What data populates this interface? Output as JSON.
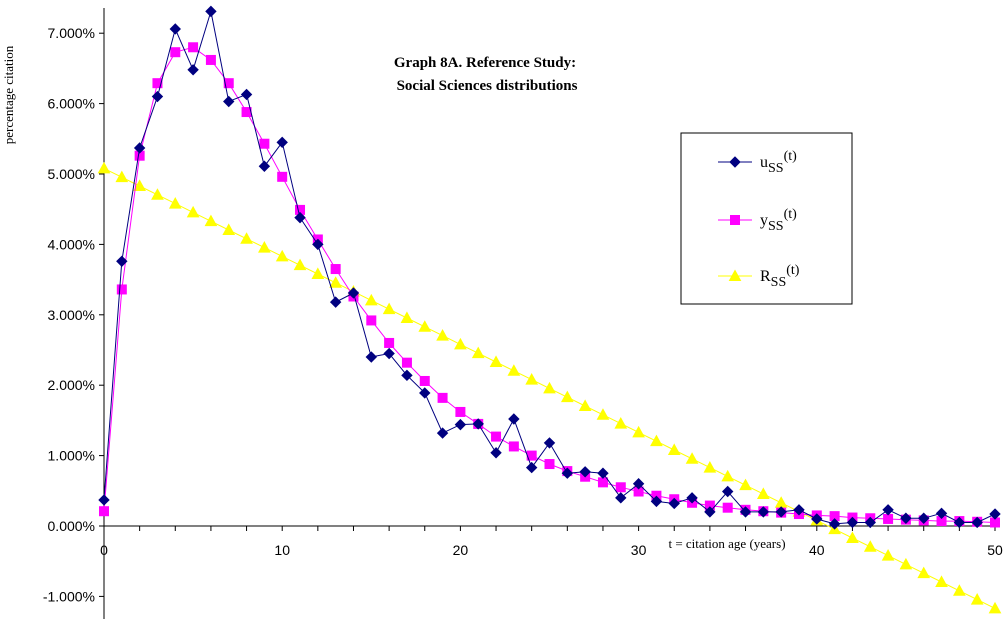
{
  "chart_data": {
    "type": "line",
    "title": "Graph 8A.  Reference Study:",
    "subtitle": "Social Sciences distributions",
    "xlabel": "t = citation age (years)",
    "ylabel": "percentage citation",
    "xlim": [
      0,
      50
    ],
    "ylim": [
      -1.0,
      7.5
    ],
    "x_ticks": [
      0,
      10,
      20,
      30,
      40,
      50
    ],
    "y_ticks": [
      -1.0,
      0.0,
      1.0,
      2.0,
      3.0,
      4.0,
      5.0,
      6.0,
      7.0
    ],
    "y_tick_labels": [
      "-1.000%",
      "0.000%",
      "1.000%",
      "2.000%",
      "3.000%",
      "4.000%",
      "5.000%",
      "6.000%",
      "7.000%"
    ],
    "grid": false,
    "legend_position": "right",
    "series": [
      {
        "name": "u",
        "name_sub": "SS",
        "name_sup": "(t)",
        "color": "#000080",
        "marker": "diamond",
        "x": [
          0,
          1,
          2,
          3,
          4,
          5,
          6,
          7,
          8,
          9,
          10,
          11,
          12,
          13,
          14,
          15,
          16,
          17,
          18,
          19,
          20,
          21,
          22,
          23,
          24,
          25,
          26,
          27,
          28,
          29,
          30,
          31,
          32,
          33,
          34,
          35,
          36,
          37,
          38,
          39,
          40,
          41,
          42,
          43,
          44,
          45,
          46,
          47,
          48,
          49,
          50
        ],
        "y": [
          0.37,
          3.76,
          5.37,
          6.1,
          7.06,
          6.48,
          7.31,
          6.03,
          6.13,
          5.11,
          5.45,
          4.38,
          4.0,
          3.18,
          3.31,
          2.4,
          2.45,
          2.14,
          1.89,
          1.32,
          1.44,
          1.45,
          1.04,
          1.52,
          0.83,
          1.18,
          0.75,
          0.77,
          0.75,
          0.4,
          0.6,
          0.35,
          0.32,
          0.4,
          0.2,
          0.49,
          0.2,
          0.2,
          0.2,
          0.23,
          0.1,
          0.03,
          0.05,
          0.05,
          0.23,
          0.11,
          0.11,
          0.18,
          0.05,
          0.05,
          0.17
        ]
      },
      {
        "name": "y",
        "name_sub": "SS",
        "name_sup": "(t)",
        "color": "#ff00ff",
        "marker": "square",
        "x": [
          0,
          1,
          2,
          3,
          4,
          5,
          6,
          7,
          8,
          9,
          10,
          11,
          12,
          13,
          14,
          15,
          16,
          17,
          18,
          19,
          20,
          21,
          22,
          23,
          24,
          25,
          26,
          27,
          28,
          29,
          30,
          31,
          32,
          33,
          34,
          35,
          36,
          37,
          38,
          39,
          40,
          41,
          42,
          43,
          44,
          45,
          46,
          47,
          48,
          49,
          50
        ],
        "y": [
          0.21,
          3.36,
          5.26,
          6.29,
          6.73,
          6.8,
          6.62,
          6.29,
          5.88,
          5.43,
          4.96,
          4.49,
          4.07,
          3.65,
          3.26,
          2.92,
          2.6,
          2.32,
          2.06,
          1.82,
          1.62,
          1.45,
          1.27,
          1.13,
          1.0,
          0.88,
          0.78,
          0.7,
          0.62,
          0.55,
          0.49,
          0.43,
          0.38,
          0.33,
          0.29,
          0.26,
          0.23,
          0.21,
          0.19,
          0.17,
          0.15,
          0.14,
          0.12,
          0.11,
          0.1,
          0.09,
          0.08,
          0.07,
          0.07,
          0.06,
          0.05
        ]
      },
      {
        "name": "R",
        "name_sub": "SS",
        "name_sup": "(t)",
        "color": "#ffff00",
        "marker": "triangle",
        "x": [
          0,
          1,
          2,
          3,
          4,
          5,
          6,
          7,
          8,
          9,
          10,
          11,
          12,
          13,
          14,
          15,
          16,
          17,
          18,
          19,
          20,
          21,
          22,
          23,
          24,
          25,
          26,
          27,
          28,
          29,
          30,
          31,
          32,
          33,
          34,
          35,
          36,
          37,
          38,
          39,
          40,
          41,
          42,
          43,
          44,
          45,
          46,
          47,
          48,
          49,
          50
        ],
        "y": [
          5.08,
          4.955,
          4.83,
          4.705,
          4.58,
          4.455,
          4.33,
          4.205,
          4.08,
          3.955,
          3.83,
          3.705,
          3.58,
          3.455,
          3.33,
          3.205,
          3.08,
          2.955,
          2.83,
          2.705,
          2.58,
          2.455,
          2.33,
          2.205,
          2.08,
          1.955,
          1.83,
          1.705,
          1.58,
          1.455,
          1.33,
          1.205,
          1.08,
          0.955,
          0.83,
          0.705,
          0.58,
          0.455,
          0.33,
          0.205,
          0.08,
          -0.045,
          -0.17,
          -0.295,
          -0.42,
          -0.545,
          -0.67,
          -0.795,
          -0.92,
          -1.045,
          -1.17
        ]
      }
    ]
  }
}
